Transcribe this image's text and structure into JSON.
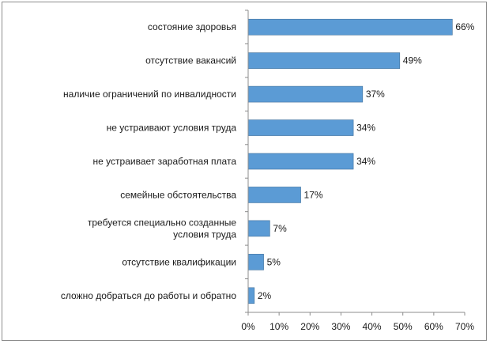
{
  "chart_data": {
    "type": "bar",
    "orientation": "horizontal",
    "title": "",
    "xlabel": "",
    "ylabel": "",
    "xlim": [
      0,
      70
    ],
    "ticks": [
      0,
      10,
      20,
      30,
      40,
      50,
      60,
      70
    ],
    "tick_labels": [
      "0%",
      "10%",
      "20%",
      "30%",
      "40%",
      "50%",
      "60%",
      "70%"
    ],
    "grid": false,
    "legend": "none",
    "bar_color": "#5b9bd5",
    "bar_border_color": "#41719c",
    "categories": [
      [
        "состояние здоровья"
      ],
      [
        "отсутствие вакансий"
      ],
      [
        "наличие ограничений по инвалидности"
      ],
      [
        "не устраивают условия труда"
      ],
      [
        "не устраивает заработная плата"
      ],
      [
        "семейные обстоятельства"
      ],
      [
        "требуется специально созданные",
        "условия труда"
      ],
      [
        "отсутствие квалификации"
      ],
      [
        "сложно добраться до работы и обратно"
      ]
    ],
    "values": [
      66,
      49,
      37,
      34,
      34,
      17,
      7,
      5,
      2
    ],
    "data_labels": [
      "66%",
      "49%",
      "37%",
      "34%",
      "34%",
      "17%",
      "7%",
      "5%",
      "2%"
    ]
  }
}
